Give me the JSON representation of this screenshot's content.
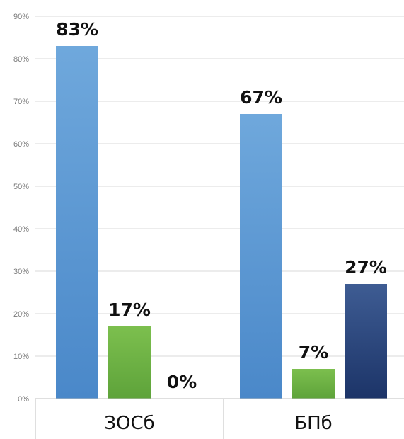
{
  "chart_data": {
    "type": "bar",
    "categories": [
      "ЗОСб",
      "БПб"
    ],
    "series": [
      {
        "values": [
          83,
          67
        ],
        "color": "#5b9bd5",
        "labels": [
          "83%",
          "67%"
        ]
      },
      {
        "values": [
          17,
          7
        ],
        "color": "#70ad47",
        "labels": [
          "17%",
          "7%"
        ]
      },
      {
        "values": [
          0,
          27
        ],
        "color": "#2e4a7d",
        "labels": [
          "0%",
          "27%"
        ]
      }
    ],
    "yticks": [
      "0%",
      "10%",
      "20%",
      "30%",
      "40%",
      "50%",
      "60%",
      "70%",
      "80%",
      "90%"
    ],
    "ylim": [
      0,
      90
    ],
    "grid": true,
    "legend": "none"
  }
}
